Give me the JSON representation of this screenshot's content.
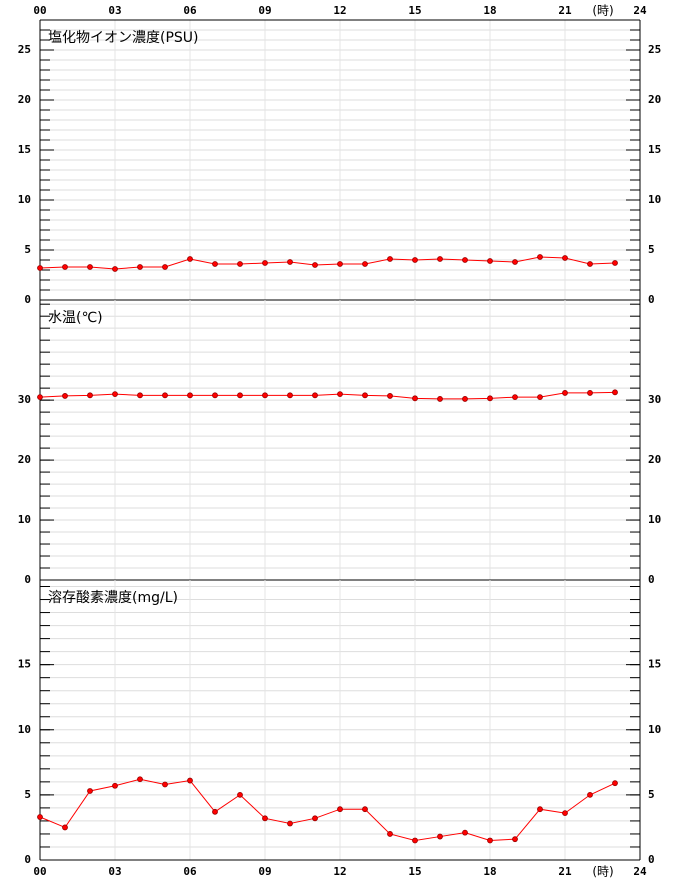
{
  "chart_data": [
    {
      "type": "line",
      "title": "塩化物イオン濃度(PSU)",
      "x_unit": "(時)",
      "x": [
        0,
        1,
        2,
        3,
        4,
        5,
        6,
        7,
        8,
        9,
        10,
        11,
        12,
        13,
        14,
        15,
        16,
        17,
        18,
        19,
        20,
        21,
        22,
        23
      ],
      "series": [
        {
          "name": "塩化物イオン濃度",
          "color": "#ff0000",
          "values": [
            3.2,
            3.3,
            3.3,
            3.1,
            3.3,
            3.3,
            4.1,
            3.6,
            3.6,
            3.7,
            3.8,
            3.5,
            3.6,
            3.6,
            4.1,
            4.0,
            4.1,
            4.0,
            3.9,
            3.8,
            4.3,
            4.2,
            3.6,
            3.7
          ]
        }
      ],
      "xlim": [
        0,
        24
      ],
      "xticks": [
        {
          "value": 0,
          "label": "00"
        },
        {
          "value": 3,
          "label": "03"
        },
        {
          "value": 6,
          "label": "06"
        },
        {
          "value": 9,
          "label": "09"
        },
        12,
        15,
        18,
        21,
        24
      ],
      "ylim": [
        0,
        28
      ],
      "yticks": [
        0,
        5,
        10,
        15,
        20,
        25
      ],
      "minor_grid": 1
    },
    {
      "type": "line",
      "title": "水温(℃)",
      "x": [
        0,
        1,
        2,
        3,
        4,
        5,
        6,
        7,
        8,
        9,
        10,
        11,
        12,
        13,
        14,
        15,
        16,
        17,
        18,
        19,
        20,
        21,
        22,
        23
      ],
      "series": [
        {
          "name": "水温",
          "color": "#ff0000",
          "values": [
            30.5,
            30.7,
            30.8,
            31.0,
            30.8,
            30.8,
            30.8,
            30.8,
            30.8,
            30.8,
            30.8,
            30.8,
            31.0,
            30.8,
            30.7,
            30.3,
            30.2,
            30.2,
            30.3,
            30.5,
            30.5,
            31.2,
            31.2,
            31.3
          ]
        }
      ],
      "xlim": [
        0,
        24
      ],
      "xticks": [
        {
          "value": 0,
          "label": "00"
        },
        {
          "value": 3,
          "label": "03"
        },
        {
          "value": 6,
          "label": "06"
        },
        {
          "value": 9,
          "label": "09"
        },
        12,
        15,
        18,
        21,
        24
      ],
      "ylim": [
        0,
        46.7
      ],
      "yticks": [
        0,
        10,
        20,
        30
      ],
      "minor_grid": 2
    },
    {
      "type": "line",
      "title": "溶存酸素濃度(mg/L)",
      "x_unit": "(時)",
      "x": [
        0,
        1,
        2,
        3,
        4,
        5,
        6,
        7,
        8,
        9,
        10,
        11,
        12,
        13,
        14,
        15,
        16,
        17,
        18,
        19,
        20,
        21,
        22,
        23
      ],
      "series": [
        {
          "name": "溶存酸素濃度",
          "color": "#ff0000",
          "values": [
            3.3,
            2.5,
            5.3,
            5.7,
            6.2,
            5.8,
            6.1,
            3.7,
            5.0,
            3.2,
            2.8,
            3.2,
            3.9,
            3.9,
            2.0,
            1.5,
            1.8,
            2.1,
            1.5,
            1.6,
            3.9,
            3.6,
            5.0,
            5.9
          ]
        }
      ],
      "xlim": [
        0,
        24
      ],
      "xticks": [
        {
          "value": 0,
          "label": "00"
        },
        {
          "value": 3,
          "label": "03"
        },
        {
          "value": 6,
          "label": "06"
        },
        {
          "value": 9,
          "label": "09"
        },
        12,
        15,
        18,
        21,
        24
      ],
      "ylim": [
        0,
        21.5
      ],
      "yticks": [
        0,
        5,
        10,
        15
      ],
      "minor_grid": 1
    }
  ]
}
